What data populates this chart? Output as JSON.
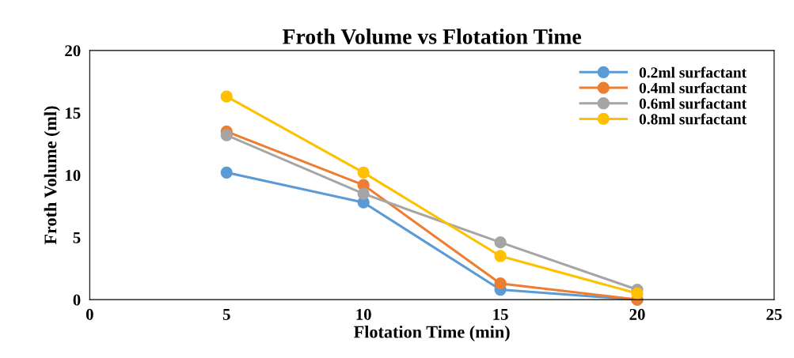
{
  "chart_data": {
    "type": "line",
    "title": "Froth Volume vs Flotation Time",
    "xlabel": "Flotation Time (min)",
    "ylabel": "Froth Volume (ml)",
    "x": [
      5,
      10,
      15,
      20
    ],
    "series": [
      {
        "name": "0.2ml surfactant",
        "color": "#5b9bd5",
        "values": [
          10.2,
          7.8,
          0.8,
          0
        ]
      },
      {
        "name": "0.4ml surfactant",
        "color": "#ed7d31",
        "values": [
          13.5,
          9.2,
          1.3,
          0
        ]
      },
      {
        "name": "0.6ml surfactant",
        "color": "#a5a5a5",
        "values": [
          13.2,
          8.5,
          4.6,
          0.8
        ]
      },
      {
        "name": "0.8ml surfactant",
        "color": "#ffc000",
        "values": [
          16.3,
          10.2,
          3.5,
          0.5
        ]
      }
    ],
    "xlim": [
      0,
      25
    ],
    "xticks": [
      0,
      5,
      10,
      15,
      20,
      25
    ],
    "ylim": [
      0,
      20
    ],
    "yticks": [
      0,
      5,
      10,
      15,
      20
    ],
    "grid": false,
    "legend": "top right",
    "marker": "circle",
    "line_style": "solid"
  }
}
